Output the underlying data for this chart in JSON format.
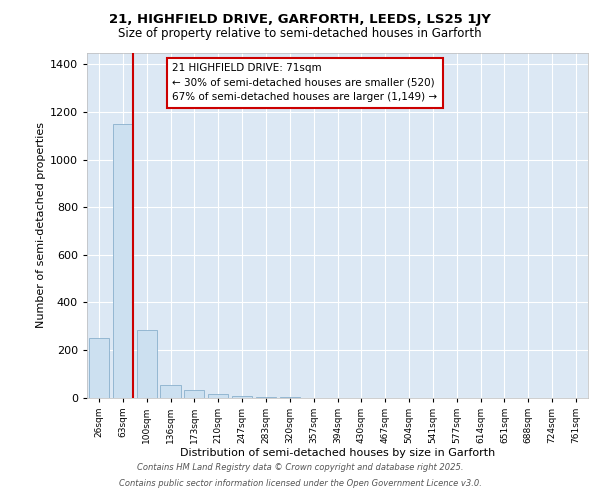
{
  "title_line1": "21, HIGHFIELD DRIVE, GARFORTH, LEEDS, LS25 1JY",
  "title_line2": "Size of property relative to semi-detached houses in Garforth",
  "xlabel": "Distribution of semi-detached houses by size in Garforth",
  "ylabel": "Number of semi-detached properties",
  "categories": [
    "26sqm",
    "63sqm",
    "100sqm",
    "136sqm",
    "173sqm",
    "210sqm",
    "247sqm",
    "283sqm",
    "320sqm",
    "357sqm",
    "394sqm",
    "430sqm",
    "467sqm",
    "504sqm",
    "541sqm",
    "577sqm",
    "614sqm",
    "651sqm",
    "688sqm",
    "724sqm",
    "761sqm"
  ],
  "values": [
    252,
    1150,
    282,
    52,
    30,
    14,
    5,
    2,
    1,
    0,
    0,
    0,
    0,
    0,
    0,
    0,
    0,
    0,
    0,
    0,
    0
  ],
  "bar_color": "#cce0f0",
  "bar_edge_color": "#8ab0cc",
  "vline_color": "#cc0000",
  "vline_x": 1.43,
  "annotation_title": "21 HIGHFIELD DRIVE: 71sqm",
  "annotation_line2": "← 30% of semi-detached houses are smaller (520)",
  "annotation_line3": "67% of semi-detached houses are larger (1,149) →",
  "annotation_box_edgecolor": "#cc0000",
  "ylim": [
    0,
    1450
  ],
  "yticks": [
    0,
    200,
    400,
    600,
    800,
    1000,
    1200,
    1400
  ],
  "footer_line1": "Contains HM Land Registry data © Crown copyright and database right 2025.",
  "footer_line2": "Contains public sector information licensed under the Open Government Licence v3.0.",
  "bg_color": "#ffffff",
  "plot_bg_color": "#dce8f4"
}
